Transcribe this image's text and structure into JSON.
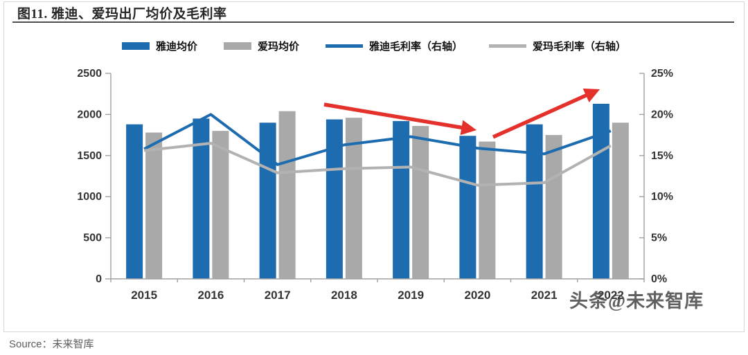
{
  "figure": {
    "title": "图11. 雅迪、爱玛出厂均价及毛利率",
    "watermark": "头条@未来智库",
    "source_label": "Source：未来智库"
  },
  "colors": {
    "brand_blue": "#1E6CB0",
    "bar_gray": "#A9A9A9",
    "line_gray": "#B2B2B2",
    "arrow_red": "#E5312B",
    "axis_gray": "#A0A0A0",
    "tick_text": "#333333"
  },
  "chart_data": {
    "type": "bar",
    "subtype": "dual-axis combo: grouped bars (left axis, price) + lines (right axis, gross margin %)",
    "title": "雅迪、爱玛出厂均价及毛利率",
    "categories": [
      "2015",
      "2016",
      "2017",
      "2018",
      "2019",
      "2020",
      "2021",
      "2022"
    ],
    "series": [
      {
        "name": "雅迪均价",
        "type": "bar",
        "axis": "left",
        "color": "#1E6CB0",
        "values": [
          1880,
          1950,
          1900,
          1940,
          1920,
          1740,
          1880,
          2130
        ]
      },
      {
        "name": "爱玛均价",
        "type": "bar",
        "axis": "left",
        "color": "#A9A9A9",
        "values": [
          1780,
          1800,
          2040,
          1960,
          1860,
          1670,
          1750,
          1900
        ]
      },
      {
        "name": "雅迪毛利率（右轴）",
        "type": "line",
        "axis": "right",
        "color": "#1E6CB0",
        "values": [
          15.8,
          20.0,
          13.9,
          16.3,
          17.3,
          15.9,
          15.2,
          18.0
        ]
      },
      {
        "name": "爱玛毛利率（右轴）",
        "type": "line",
        "axis": "right",
        "color": "#B2B2B2",
        "values": [
          15.6,
          16.5,
          12.9,
          13.4,
          13.6,
          11.4,
          11.7,
          16.2
        ]
      }
    ],
    "left_axis": {
      "min": 0,
      "max": 2500,
      "step": 500,
      "ticks": [
        "0",
        "500",
        "1000",
        "1500",
        "2000",
        "2500"
      ]
    },
    "right_axis": {
      "min": 0,
      "max": 25,
      "step": 5,
      "format": "percent",
      "ticks": [
        "0%",
        "5%",
        "10%",
        "15%",
        "20%",
        "25%"
      ]
    },
    "legend_position": "top",
    "grid": false,
    "annotations": [
      {
        "type": "arrow",
        "color": "#E5312B",
        "note": "red arrow pointing down-right to the 2020 dip",
        "tail": [
          468,
          151
        ],
        "tip": [
          688,
          188
        ]
      },
      {
        "type": "arrow",
        "color": "#E5312B",
        "note": "red arrow pointing up-right to the 2022 peak",
        "tail": [
          712,
          198
        ],
        "tip": [
          866,
          129
        ]
      }
    ]
  }
}
